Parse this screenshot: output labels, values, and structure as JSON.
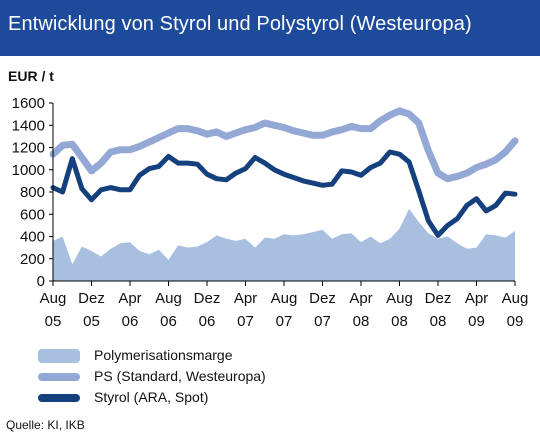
{
  "header": {
    "title": "Entwicklung von Styrol und Polystyrol (Westeuropa)"
  },
  "colors": {
    "header_bg": "#1d4a9a",
    "margin_area": "#a9bfe0",
    "ps_line": "#94a8d6",
    "styrol_line": "#15407e"
  },
  "chart_data": {
    "type": "line",
    "title": "Entwicklung von Styrol und Polystyrol (Westeuropa)",
    "ylabel": "EUR / t",
    "ylim": [
      0,
      1600
    ],
    "yticks": [
      0,
      200,
      400,
      600,
      800,
      1000,
      1200,
      1400,
      1600
    ],
    "yticks_labels": [
      "0",
      "200",
      "400",
      "600",
      "800",
      "1000",
      "1200",
      "1400",
      "1600"
    ],
    "xlim": [
      0,
      48
    ],
    "xticks": [
      {
        "pos": 0,
        "label": [
          "Aug",
          "05"
        ]
      },
      {
        "pos": 4,
        "label": [
          "Dez",
          "05"
        ]
      },
      {
        "pos": 8,
        "label": [
          "Apr",
          "06"
        ]
      },
      {
        "pos": 12,
        "label": [
          "Aug",
          "06"
        ]
      },
      {
        "pos": 16,
        "label": [
          "Dez",
          "06"
        ]
      },
      {
        "pos": 20,
        "label": [
          "Apr",
          "07"
        ]
      },
      {
        "pos": 24,
        "label": [
          "Aug",
          "07"
        ]
      },
      {
        "pos": 28,
        "label": [
          "Dez",
          "07"
        ]
      },
      {
        "pos": 32,
        "label": [
          "Apr",
          "08"
        ]
      },
      {
        "pos": 36,
        "label": [
          "Aug",
          "08"
        ]
      },
      {
        "pos": 40,
        "label": [
          "Dez",
          "08"
        ]
      },
      {
        "pos": 44,
        "label": [
          "Apr",
          "09"
        ]
      },
      {
        "pos": 48,
        "label": [
          "Aug",
          "09"
        ]
      }
    ],
    "grid": false,
    "series": [
      {
        "name": "Polymerisationsmarge",
        "style": "area",
        "values": [
          360,
          400,
          150,
          310,
          270,
          220,
          290,
          340,
          350,
          270,
          240,
          280,
          190,
          320,
          300,
          310,
          350,
          410,
          380,
          360,
          380,
          300,
          390,
          380,
          420,
          410,
          420,
          440,
          460,
          380,
          420,
          430,
          350,
          400,
          340,
          380,
          470,
          650,
          530,
          430,
          380,
          400,
          340,
          290,
          300,
          420,
          410,
          390,
          450
        ]
      },
      {
        "name": "PS (Standard, Westeuropa)",
        "style": "line",
        "values": [
          1140,
          1220,
          1230,
          1110,
          990,
          1060,
          1160,
          1180,
          1180,
          1210,
          1250,
          1290,
          1330,
          1370,
          1370,
          1350,
          1320,
          1340,
          1300,
          1330,
          1360,
          1380,
          1420,
          1400,
          1380,
          1350,
          1330,
          1310,
          1310,
          1340,
          1360,
          1390,
          1370,
          1370,
          1440,
          1490,
          1530,
          1500,
          1420,
          1170,
          970,
          920,
          940,
          970,
          1020,
          1050,
          1090,
          1160,
          1260
        ]
      },
      {
        "name": "Styrol (ARA, Spot)",
        "style": "line",
        "values": [
          840,
          800,
          1100,
          830,
          730,
          820,
          840,
          820,
          820,
          950,
          1010,
          1030,
          1120,
          1060,
          1060,
          1050,
          960,
          920,
          910,
          970,
          1010,
          1110,
          1060,
          1000,
          960,
          930,
          900,
          880,
          860,
          870,
          990,
          980,
          950,
          1020,
          1060,
          1160,
          1140,
          1070,
          810,
          540,
          410,
          500,
          560,
          680,
          740,
          630,
          680,
          790,
          780
        ]
      }
    ]
  },
  "legend": {
    "items": [
      {
        "label": "Polymerisationsmarge"
      },
      {
        "label": "PS (Standard, Westeuropa)"
      },
      {
        "label": "Styrol (ARA, Spot)"
      }
    ]
  },
  "source": "Quelle: KI, IKB"
}
